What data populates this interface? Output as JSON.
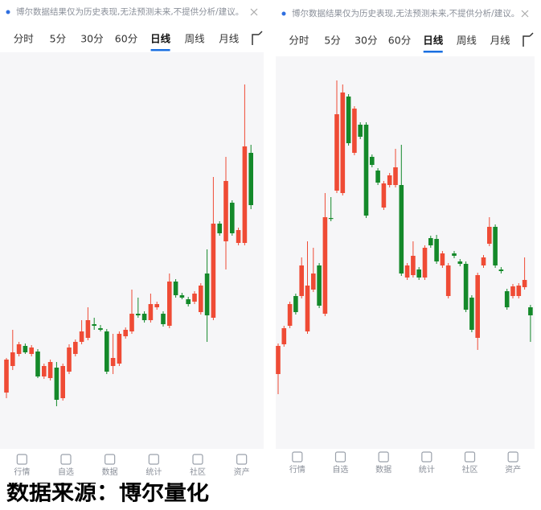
{
  "panels": [
    {
      "notice": "博尔数据结果仅为历史表现,无法预测未来,不提供分析/建议。",
      "tabs": [
        "分时",
        "5分",
        "30分",
        "60分",
        "日线",
        "周线",
        "月线"
      ],
      "nav": [
        "行情",
        "自选",
        "数据",
        "统计",
        "社区",
        "资产"
      ],
      "chart": {
        "type": "candlestick",
        "up_color": "#ef4b35",
        "down_color": "#14892a",
        "candles": [
          [
            112,
            155,
            105,
            153
          ],
          [
            145,
            190,
            140,
            162
          ],
          [
            160,
            175,
            157,
            172
          ],
          [
            170,
            173,
            160,
            162
          ],
          [
            160,
            171,
            157,
            168
          ],
          [
            163,
            166,
            130,
            132
          ],
          [
            132,
            148,
            129,
            145
          ],
          [
            130,
            153,
            127,
            150
          ],
          [
            143,
            150,
            95,
            103
          ],
          [
            105,
            148,
            102,
            145
          ],
          [
            138,
            172,
            135,
            168
          ],
          [
            160,
            178,
            157,
            175
          ],
          [
            175,
            202,
            172,
            188
          ],
          [
            180,
            218,
            177,
            202
          ],
          [
            197,
            205,
            190,
            195
          ],
          [
            192,
            196,
            188,
            190
          ],
          [
            188,
            191,
            135,
            138
          ],
          [
            145,
            185,
            135,
            155
          ],
          [
            148,
            188,
            145,
            185
          ],
          [
            182,
            193,
            179,
            190
          ],
          [
            188,
            240,
            185,
            210
          ],
          [
            210,
            230,
            205,
            208
          ],
          [
            210,
            213,
            199,
            202
          ],
          [
            202,
            235,
            199,
            222
          ],
          [
            218,
            225,
            215,
            222
          ],
          [
            210,
            213,
            194,
            197
          ],
          [
            195,
            260,
            192,
            250
          ],
          [
            250,
            253,
            230,
            233
          ],
          [
            233,
            236,
            228,
            230
          ],
          [
            228,
            231,
            219,
            222
          ],
          [
            225,
            238,
            222,
            235
          ],
          [
            212,
            248,
            209,
            245
          ],
          [
            260,
            290,
            175,
            208
          ],
          [
            205,
            380,
            202,
            322
          ],
          [
            322,
            325,
            307,
            310
          ],
          [
            300,
            405,
            265,
            375
          ],
          [
            348,
            351,
            307,
            310
          ],
          [
            298,
            317,
            295,
            314
          ],
          [
            298,
            495,
            295,
            418
          ],
          [
            410,
            420,
            340,
            345
          ]
        ]
      }
    },
    {
      "notice": "博尔数据结果仅为历史表现,无法预测未来,不提供分析/建议。",
      "tabs": [
        "分时",
        "5分",
        "30分",
        "60分",
        "日线",
        "周线",
        "月线"
      ],
      "nav": [
        "行情",
        "自选",
        "数据",
        "统计",
        "社区",
        "资产"
      ],
      "chart": {
        "type": "candlestick",
        "up_color": "#ef4b35",
        "down_color": "#14892a",
        "candles": [
          [
            135,
            173,
            110,
            170
          ],
          [
            172,
            195,
            169,
            192
          ],
          [
            195,
            225,
            192,
            222
          ],
          [
            232,
            235,
            209,
            212
          ],
          [
            232,
            280,
            229,
            270
          ],
          [
            188,
            300,
            185,
            245
          ],
          [
            240,
            292,
            237,
            260
          ],
          [
            270,
            273,
            217,
            220
          ],
          [
            210,
            360,
            207,
            330
          ],
          [
            329,
            355,
            325,
            328
          ],
          [
            363,
            500,
            360,
            458
          ],
          [
            360,
            495,
            357,
            485
          ],
          [
            480,
            483,
            419,
            422
          ],
          [
            410,
            468,
            407,
            465
          ],
          [
            445,
            448,
            427,
            430
          ],
          [
            445,
            448,
            329,
            332
          ],
          [
            405,
            408,
            392,
            395
          ],
          [
            388,
            391,
            370,
            373
          ],
          [
            342,
            375,
            339,
            372
          ],
          [
            370,
            385,
            367,
            382
          ],
          [
            370,
            415,
            367,
            392
          ],
          [
            370,
            420,
            257,
            260
          ],
          [
            255,
            273,
            252,
            270
          ],
          [
            258,
            300,
            255,
            282
          ],
          [
            265,
            268,
            252,
            255
          ],
          [
            255,
            295,
            252,
            292
          ],
          [
            304,
            307,
            292,
            295
          ],
          [
            303,
            308,
            272,
            275
          ],
          [
            270,
            288,
            267,
            285
          ],
          [
            232,
            273,
            229,
            270
          ],
          [
            285,
            288,
            279,
            282
          ],
          [
            275,
            278,
            269,
            272
          ],
          [
            272,
            275,
            212,
            215
          ],
          [
            230,
            233,
            187,
            190
          ],
          [
            180,
            261,
            165,
            258
          ],
          [
            270,
            283,
            267,
            280
          ],
          [
            297,
            330,
            294,
            318
          ],
          [
            318,
            321,
            267,
            270
          ],
          [
            265,
            268,
            260,
            263
          ],
          [
            238,
            241,
            215,
            218
          ],
          [
            232,
            247,
            229,
            244
          ],
          [
            232,
            248,
            229,
            245
          ],
          [
            243,
            280,
            240,
            252
          ],
          [
            218,
            221,
            175,
            208
          ]
        ]
      }
    }
  ],
  "footer": "数据来源：博尔量化"
}
